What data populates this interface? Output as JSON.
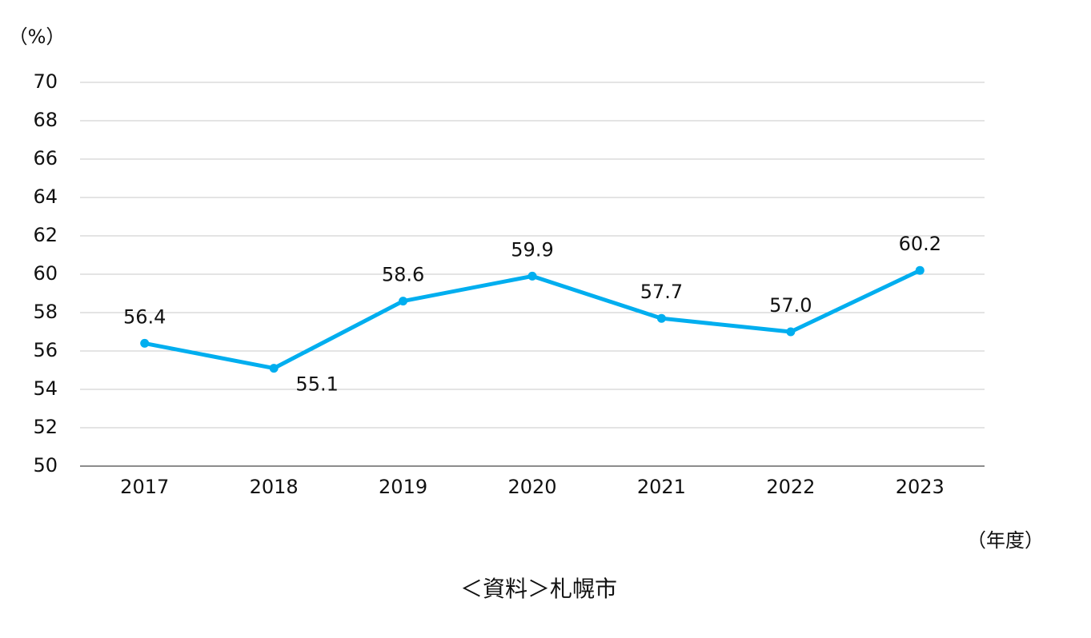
{
  "chart_data": {
    "type": "line",
    "y_label": "（%）",
    "x_label": "（年度）",
    "source": "＜資料＞札幌市",
    "categories": [
      "2017",
      "2018",
      "2019",
      "2020",
      "2021",
      "2022",
      "2023"
    ],
    "values": [
      56.4,
      55.1,
      58.6,
      59.9,
      57.7,
      57.0,
      60.2
    ],
    "value_labels": [
      "56.4",
      "55.1",
      "58.6",
      "59.9",
      "57.7",
      "57.0",
      "60.2"
    ],
    "color": "#00aeef",
    "ylim": [
      50,
      70
    ],
    "yticks": [
      50,
      52,
      54,
      56,
      58,
      60,
      62,
      64,
      66,
      68,
      70
    ],
    "grid": true
  }
}
